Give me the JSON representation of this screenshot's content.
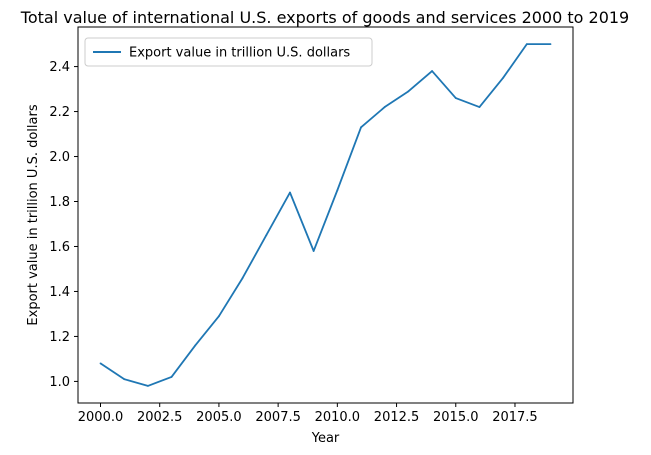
{
  "chart_data": {
    "type": "line",
    "title": "Total value of international U.S. exports of goods and services 2000 to 2019",
    "xlabel": "Year",
    "ylabel": "Export value in trillion U.S. dollars",
    "x": [
      2000,
      2001,
      2002,
      2003,
      2004,
      2005,
      2006,
      2007,
      2008,
      2009,
      2010,
      2011,
      2012,
      2013,
      2014,
      2015,
      2016,
      2017,
      2018,
      2019
    ],
    "series": [
      {
        "name": "Export value in trillion U.S. dollars",
        "color": "#1f77b4",
        "values": [
          1.08,
          1.01,
          0.98,
          1.02,
          1.16,
          1.29,
          1.46,
          1.65,
          1.84,
          1.58,
          1.85,
          2.13,
          2.22,
          2.29,
          2.38,
          2.26,
          2.22,
          2.35,
          2.5,
          2.5
        ]
      }
    ],
    "xlim": [
      1999.05,
      2019.95
    ],
    "ylim": [
      0.904,
      2.576
    ],
    "xticks": [
      2000.0,
      2002.5,
      2005.0,
      2007.5,
      2010.0,
      2012.5,
      2015.0,
      2017.5
    ],
    "xtick_labels": [
      "2000.0",
      "2002.5",
      "2005.0",
      "2007.5",
      "2010.0",
      "2012.5",
      "2015.0",
      "2017.5"
    ],
    "yticks": [
      1.0,
      1.2,
      1.4,
      1.6,
      1.8,
      2.0,
      2.2,
      2.4
    ],
    "ytick_labels": [
      "1.0",
      "1.2",
      "1.4",
      "1.6",
      "1.8",
      "2.0",
      "2.2",
      "2.4"
    ],
    "grid": false,
    "legend_position": "top-left"
  }
}
